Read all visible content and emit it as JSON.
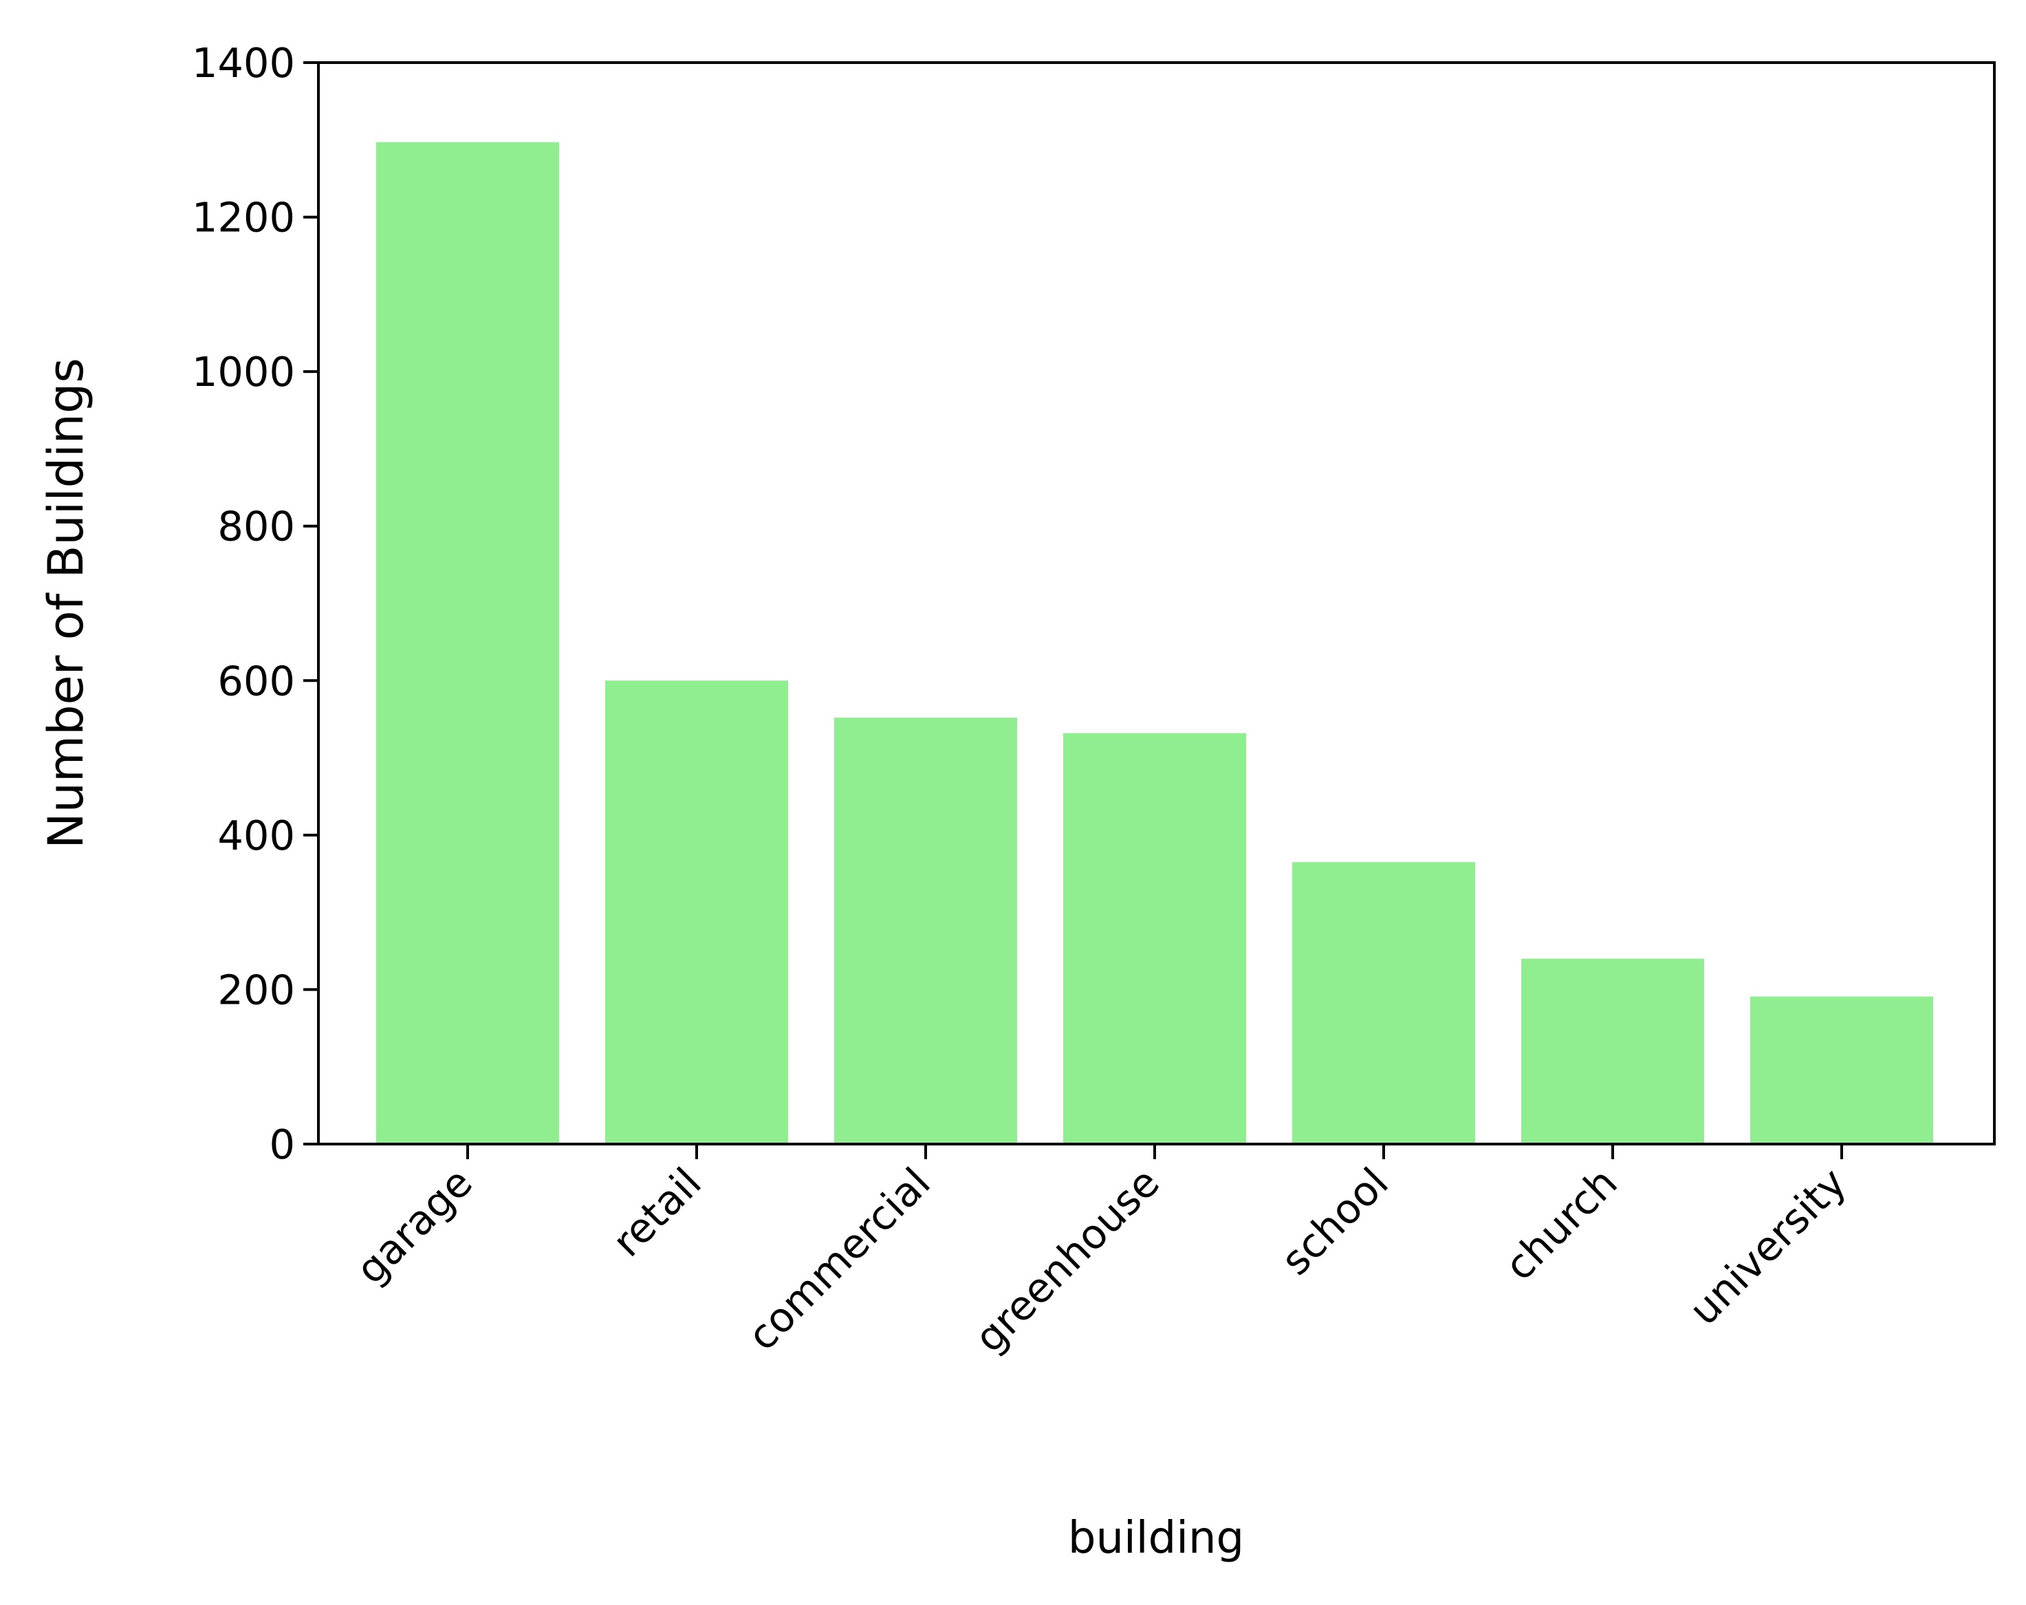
{
  "chart_data": {
    "type": "bar",
    "categories": [
      "garage",
      "retail",
      "commercial",
      "greenhouse",
      "school",
      "church",
      "university"
    ],
    "values": [
      1297,
      600,
      552,
      532,
      365,
      240,
      191
    ],
    "title": "",
    "xlabel": "building",
    "ylabel": "Number of Buildings",
    "ylim": [
      0,
      1400
    ],
    "yticks": [
      0,
      200,
      400,
      600,
      800,
      1000,
      1200,
      1400
    ],
    "bar_color": "#90ee90",
    "grid": false,
    "legend": "none"
  }
}
